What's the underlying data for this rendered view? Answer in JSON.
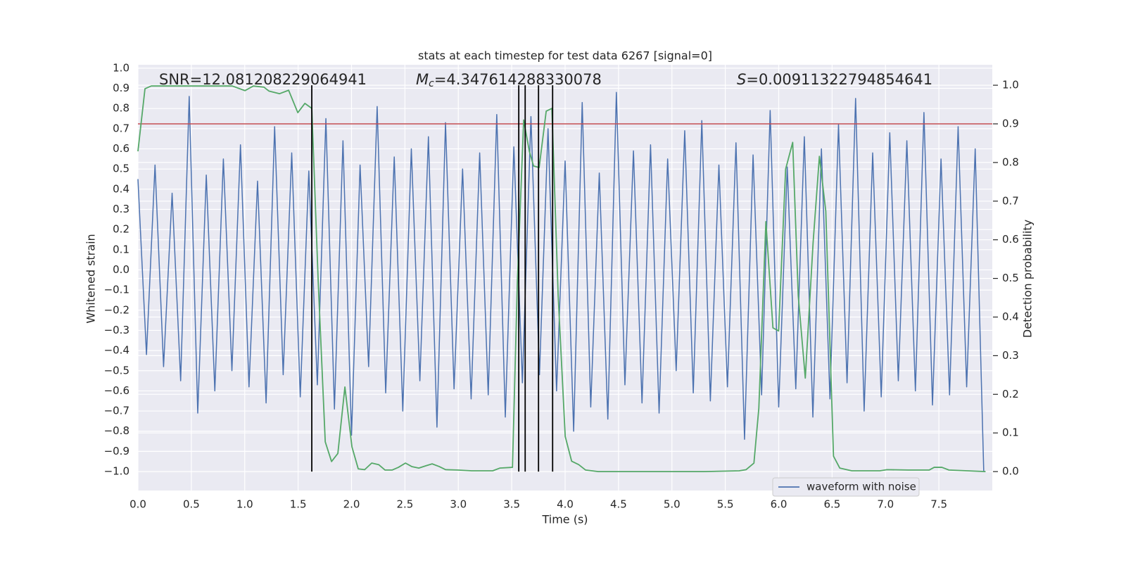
{
  "chart_data": {
    "type": "line",
    "title": "stats at each timestep for test data 6267 [signal=0]",
    "xlabel": "Time (s)",
    "ylabel": "Whitened strain",
    "y2label": "Detection probability",
    "annotations": [
      {
        "text": "SNR=12.081208229064941"
      },
      {
        "italic": "M",
        "sub": "c",
        "text": "=4.347614288330078"
      },
      {
        "italic": "S",
        "text": "=0.00911322794854641"
      }
    ],
    "xlim": [
      0,
      8
    ],
    "ylim": [
      -1.094,
      1.017
    ],
    "y2lim": [
      -0.049,
      1.053
    ],
    "xticks": [
      {
        "value": 0,
        "label": "0.0"
      },
      {
        "value": 0.5,
        "label": "0.5"
      },
      {
        "value": 1,
        "label": "1.0"
      },
      {
        "value": 1.5,
        "label": "1.5"
      },
      {
        "value": 2,
        "label": "2.0"
      },
      {
        "value": 2.5,
        "label": "2.5"
      },
      {
        "value": 3,
        "label": "3.0"
      },
      {
        "value": 3.5,
        "label": "3.5"
      },
      {
        "value": 4,
        "label": "4.0"
      },
      {
        "value": 4.5,
        "label": "4.5"
      },
      {
        "value": 5,
        "label": "5.0"
      },
      {
        "value": 5.5,
        "label": "5.5"
      },
      {
        "value": 6,
        "label": "6.0"
      },
      {
        "value": 6.5,
        "label": "6.5"
      },
      {
        "value": 7,
        "label": "7.0"
      },
      {
        "value": 7.5,
        "label": "7.5"
      }
    ],
    "yticks": [
      {
        "value": -1,
        "label": "−1.0"
      },
      {
        "value": -0.9,
        "label": "−0.9"
      },
      {
        "value": -0.8,
        "label": "−0.8"
      },
      {
        "value": -0.7,
        "label": "−0.7"
      },
      {
        "value": -0.6,
        "label": "−0.6"
      },
      {
        "value": -0.5,
        "label": "−0.5"
      },
      {
        "value": -0.4,
        "label": "−0.4"
      },
      {
        "value": -0.3,
        "label": "−0.3"
      },
      {
        "value": -0.2,
        "label": "−0.2"
      },
      {
        "value": -0.1,
        "label": "−0.1"
      },
      {
        "value": 0,
        "label": "0.0"
      },
      {
        "value": 0.1,
        "label": "0.1"
      },
      {
        "value": 0.2,
        "label": "0.2"
      },
      {
        "value": 0.3,
        "label": "0.3"
      },
      {
        "value": 0.4,
        "label": "0.4"
      },
      {
        "value": 0.5,
        "label": "0.5"
      },
      {
        "value": 0.6,
        "label": "0.6"
      },
      {
        "value": 0.7,
        "label": "0.7"
      },
      {
        "value": 0.8,
        "label": "0.8"
      },
      {
        "value": 0.9,
        "label": "0.9"
      },
      {
        "value": 1,
        "label": "1.0"
      }
    ],
    "y2ticks": [
      {
        "value": 0,
        "label": "0.0"
      },
      {
        "value": 0.1,
        "label": "0.1"
      },
      {
        "value": 0.2,
        "label": "0.2"
      },
      {
        "value": 0.3,
        "label": "0.3"
      },
      {
        "value": 0.4,
        "label": "0.4"
      },
      {
        "value": 0.5,
        "label": "0.5"
      },
      {
        "value": 0.6,
        "label": "0.6"
      },
      {
        "value": 0.7,
        "label": "0.7"
      },
      {
        "value": 0.8,
        "label": "0.8"
      },
      {
        "value": 0.9,
        "label": "0.9"
      },
      {
        "value": 1,
        "label": "1.0"
      }
    ],
    "grid": true,
    "legend": "lower right",
    "series": [
      {
        "name": "waveform with noise",
        "color": "#4c72b0",
        "x": [
          0,
          0.08,
          0.16,
          0.24,
          0.32,
          0.4,
          0.48,
          0.56,
          0.64,
          0.72,
          0.8,
          0.88,
          0.96,
          1.04,
          1.12,
          1.2,
          1.28,
          1.36,
          1.44,
          1.52,
          1.6,
          1.68,
          1.76,
          1.84,
          1.92,
          2,
          2.08,
          2.16,
          2.24,
          2.32,
          2.4,
          2.48,
          2.56,
          2.64,
          2.72,
          2.8,
          2.88,
          2.96,
          3.04,
          3.12,
          3.2,
          3.28,
          3.36,
          3.44,
          3.52,
          3.6,
          3.68,
          3.76,
          3.84,
          3.92,
          4,
          4.08,
          4.16,
          4.24,
          4.32,
          4.4,
          4.48,
          4.56,
          4.64,
          4.72,
          4.8,
          4.88,
          4.96,
          5.04,
          5.12,
          5.2,
          5.28,
          5.36,
          5.44,
          5.52,
          5.6,
          5.68,
          5.76,
          5.84,
          5.92,
          6,
          6.08,
          6.16,
          6.24,
          6.32,
          6.4,
          6.48,
          6.56,
          6.64,
          6.72,
          6.8,
          6.88,
          6.96,
          7.04,
          7.12,
          7.2,
          7.28,
          7.36,
          7.44,
          7.52,
          7.6,
          7.68,
          7.76,
          7.84,
          7.92
        ],
        "values": [
          0.45,
          -0.42,
          0.52,
          -0.48,
          0.38,
          -0.55,
          0.86,
          -0.71,
          0.47,
          -0.6,
          0.55,
          -0.5,
          0.62,
          -0.58,
          0.44,
          -0.66,
          0.71,
          -0.52,
          0.58,
          -0.63,
          0.49,
          -0.57,
          0.75,
          -0.69,
          0.64,
          -0.82,
          0.52,
          -0.48,
          0.81,
          -0.61,
          0.56,
          -0.7,
          0.6,
          -0.55,
          0.66,
          -0.78,
          0.73,
          -0.59,
          0.5,
          -0.64,
          0.58,
          -0.62,
          0.77,
          -0.73,
          0.61,
          -0.56,
          0.76,
          -0.52,
          0.7,
          -0.6,
          0.54,
          -0.8,
          0.83,
          -0.68,
          0.48,
          -0.74,
          0.88,
          -0.57,
          0.59,
          -0.66,
          0.62,
          -0.71,
          0.55,
          -0.5,
          0.69,
          -0.61,
          0.74,
          -0.65,
          0.52,
          -0.58,
          0.63,
          -0.84,
          0.57,
          -0.62,
          0.79,
          -0.68,
          0.51,
          -0.59,
          0.66,
          -0.73,
          0.6,
          -0.64,
          0.72,
          -0.56,
          0.85,
          -0.7,
          0.58,
          -0.63,
          0.68,
          -0.55,
          0.64,
          -0.6,
          0.78,
          -0.67,
          0.55,
          -0.62,
          0.71,
          -0.58,
          0.6,
          -1.0
        ]
      },
      {
        "color": "#55a868",
        "axis": "y2",
        "x": [
          0,
          0.066,
          0.125,
          0.883,
          1.002,
          1.081,
          1.18,
          1.226,
          1.325,
          1.411,
          1.497,
          1.563,
          1.628,
          1.688,
          1.754,
          1.813,
          1.872,
          1.938,
          2.004,
          2.063,
          2.123,
          2.189,
          2.254,
          2.314,
          2.38,
          2.439,
          2.505,
          2.564,
          2.63,
          2.696,
          2.755,
          2.821,
          2.88,
          2.993,
          3.125,
          3.322,
          3.388,
          3.507,
          3.553,
          3.612,
          3.665,
          3.705,
          3.757,
          3.823,
          3.876,
          3.935,
          4.001,
          4.061,
          4.127,
          4.192,
          4.311,
          4.641,
          5.3,
          5.63,
          5.695,
          5.768,
          5.814,
          5.88,
          5.946,
          5.999,
          6.065,
          6.131,
          6.183,
          6.249,
          6.322,
          6.381,
          6.441,
          6.513,
          6.572,
          6.684,
          6.948,
          7.014,
          7.212,
          7.409,
          7.456,
          7.528,
          7.594,
          7.937
        ],
        "values": [
          0.829,
          0.991,
          0.998,
          0.998,
          0.986,
          0.998,
          0.995,
          0.985,
          0.978,
          0.987,
          0.929,
          0.953,
          0.94,
          0.492,
          0.077,
          0.026,
          0.047,
          0.219,
          0.064,
          0.007,
          0.005,
          0.022,
          0.018,
          0.004,
          0.004,
          0.011,
          0.022,
          0.013,
          0.009,
          0.015,
          0.02,
          0.013,
          0.005,
          0.004,
          0.002,
          0.002,
          0.009,
          0.011,
          0.492,
          0.91,
          0.829,
          0.791,
          0.787,
          0.933,
          0.94,
          0.455,
          0.091,
          0.027,
          0.018,
          0.004,
          0,
          0,
          0,
          0.002,
          0.005,
          0.022,
          0.164,
          0.647,
          0.372,
          0.364,
          0.783,
          0.852,
          0.455,
          0.242,
          0.592,
          0.816,
          0.674,
          0.04,
          0.009,
          0.002,
          0.002,
          0.005,
          0.004,
          0.004,
          0.011,
          0.011,
          0.004,
          0
        ]
      }
    ],
    "threshold": {
      "value": 0.9,
      "axis": "y2",
      "color": "#c44e52"
    },
    "vlines": {
      "x": [
        1.628,
        3.566,
        3.626,
        3.751,
        3.883
      ],
      "range": [
        0,
        1
      ],
      "axis": "y2",
      "color": "#000000"
    }
  }
}
